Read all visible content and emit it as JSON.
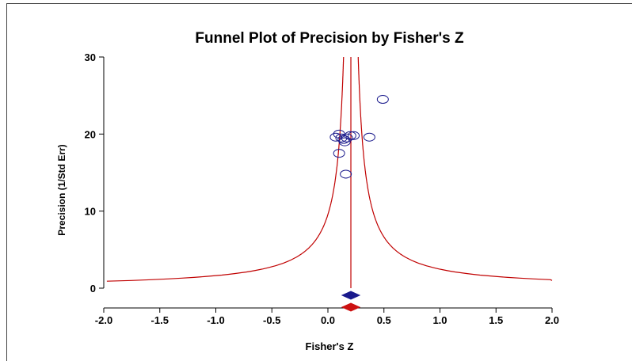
{
  "chart_data": {
    "type": "scatter",
    "title": "Funnel Plot of Precision by Fisher's Z",
    "xlabel": "Fisher's Z",
    "ylabel": "Precision (1/Std Err)",
    "xlim": [
      -2.0,
      2.0
    ],
    "ylim": [
      0,
      30
    ],
    "xticks": [
      "-2.0",
      "-1.5",
      "-1.0",
      "-0.5",
      "0.0",
      "0.5",
      "1.0",
      "1.5",
      "2.0"
    ],
    "yticks": [
      "0",
      "10",
      "20",
      "30"
    ],
    "grid": false,
    "pooled_effect": 0.205,
    "points": [
      {
        "x": 0.49,
        "y": 24.5
      },
      {
        "x": 0.1,
        "y": 20.0
      },
      {
        "x": 0.2,
        "y": 19.8
      },
      {
        "x": 0.23,
        "y": 19.8
      },
      {
        "x": 0.37,
        "y": 19.6
      },
      {
        "x": 0.07,
        "y": 19.6
      },
      {
        "x": 0.12,
        "y": 19.5
      },
      {
        "x": 0.17,
        "y": 19.5
      },
      {
        "x": 0.14,
        "y": 19.3
      },
      {
        "x": 0.15,
        "y": 19.0
      },
      {
        "x": 0.1,
        "y": 17.5
      },
      {
        "x": 0.16,
        "y": 14.8
      }
    ],
    "diamonds": [
      {
        "x": 0.205,
        "color": "#1a1a8c"
      },
      {
        "x": 0.205,
        "color": "#cc1111"
      }
    ],
    "colors": {
      "points": "#1a1a8c",
      "funnel": "#c00000"
    }
  }
}
